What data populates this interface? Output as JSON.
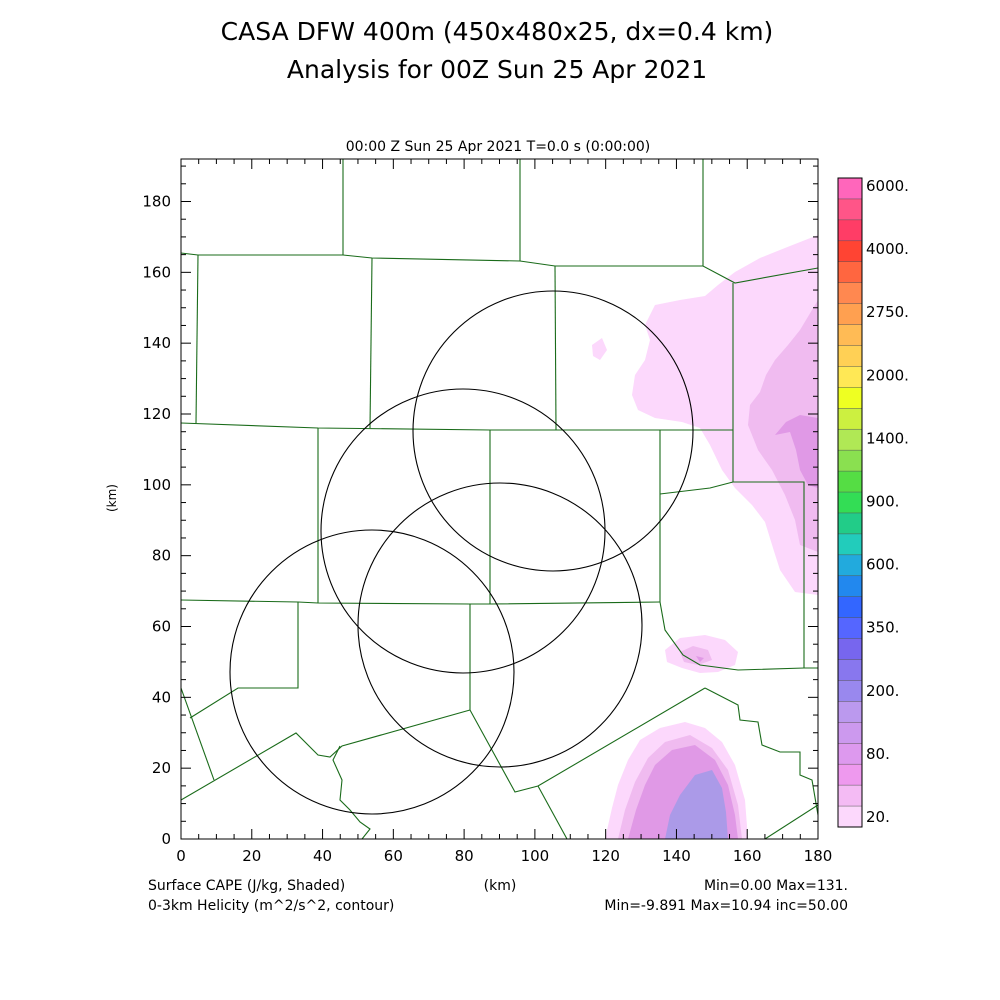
{
  "chart_data": {
    "type": "heatmap",
    "title_line1": "CASA DFW 400m (450x480x25, dx=0.4 km)",
    "title_line2": "Analysis for 00Z Sun 25 Apr 2021",
    "subtitle": "00:00 Z Sun 25 Apr 2021    T=0.0 s (0:00:00)",
    "xlabel": "(km)",
    "ylabel": "(km)",
    "xlim": [
      0,
      180
    ],
    "ylim": [
      0,
      192
    ],
    "x_ticks": [
      0,
      20,
      40,
      60,
      80,
      100,
      120,
      140,
      160,
      180
    ],
    "y_ticks": [
      0,
      20,
      40,
      60,
      80,
      100,
      120,
      140,
      160,
      180
    ],
    "colorbar": {
      "labels": [
        "6000.",
        "4000.",
        "2750.",
        "2000.",
        "1400.",
        "900.",
        "600.",
        "350.",
        "200.",
        "80.",
        "20."
      ],
      "colors_top_to_bottom": [
        "#ff66bb",
        "#ff5588",
        "#ff3d66",
        "#ff4433",
        "#ff6640",
        "#ff8850",
        "#ffa050",
        "#ffbb55",
        "#ffd055",
        "#ffe855",
        "#eeff22",
        "#ccf040",
        "#b0e855",
        "#8ae050",
        "#55dd44",
        "#33dd55",
        "#22cc88",
        "#22ccbb",
        "#22aadd",
        "#2288ee",
        "#3366ff",
        "#5566ff",
        "#7766ee",
        "#8877ee",
        "#9988ee",
        "#bb99ee",
        "#cc99ee",
        "#dd99ee",
        "#ee99ee",
        "#f4bbf4",
        "#fcd8fc"
      ]
    },
    "footer": {
      "left_line1": "Surface CAPE (J/kg, Shaded)",
      "left_line2": "0-3km Helicity (m^2/s^2, contour)",
      "center": "(km)",
      "right_line1": "Min=0.00 Max=131.",
      "right_line2": "Min=-9.891 Max=10.94 inc=50.00"
    },
    "radar_rings": [
      {
        "center": [
          107,
          115
        ],
        "radius": 39.5
      },
      {
        "center": [
          80,
          87
        ],
        "radius": 40
      },
      {
        "center": [
          54,
          47
        ],
        "radius": 40
      },
      {
        "center": [
          90,
          61
        ],
        "radius": 40
      }
    ],
    "shading_colors": {
      "light": "#fcd8fc",
      "mid": "#f0bbf0",
      "strong": "#e099e6",
      "deep": "#ab9ae8"
    },
    "county_line_color": "#1a6b1a"
  }
}
